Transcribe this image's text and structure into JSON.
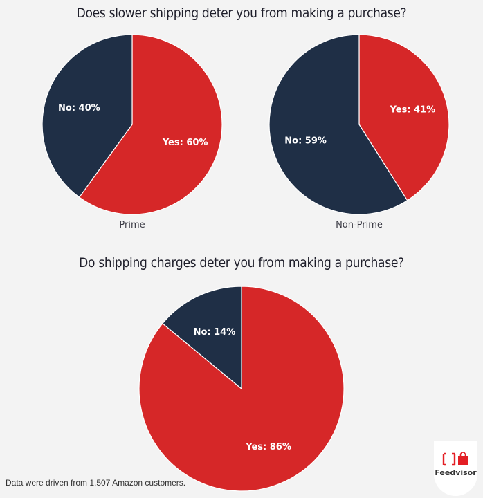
{
  "colors": {
    "yes": "#d62728",
    "no": "#1f2f46",
    "background": "#f3f3f3"
  },
  "section1": {
    "title": "Does slower shipping deter you from making a purchase?"
  },
  "section2": {
    "title": "Do shipping charges deter you from making a purchase?"
  },
  "footnote": "Data were driven from 1,507 Amazon customers.",
  "logo": {
    "brand": "Feedvisor",
    "mark": "[ ]"
  },
  "chart_data": [
    {
      "type": "pie",
      "title": "Does slower shipping deter you from making a purchase?",
      "subtitle": "Prime",
      "slices": [
        {
          "label": "Yes",
          "value": 60,
          "display": "Yes: 60%",
          "color": "#d62728"
        },
        {
          "label": "No",
          "value": 40,
          "display": "No: 40%",
          "color": "#1f2f46"
        }
      ]
    },
    {
      "type": "pie",
      "title": "Does slower shipping deter you from making a purchase?",
      "subtitle": "Non-Prime",
      "slices": [
        {
          "label": "Yes",
          "value": 41,
          "display": "Yes: 41%",
          "color": "#d62728"
        },
        {
          "label": "No",
          "value": 59,
          "display": "No: 59%",
          "color": "#1f2f46"
        }
      ]
    },
    {
      "type": "pie",
      "title": "Do shipping charges deter you from making a purchase?",
      "subtitle": "",
      "slices": [
        {
          "label": "Yes",
          "value": 86,
          "display": "Yes: 86%",
          "color": "#d62728"
        },
        {
          "label": "No",
          "value": 14,
          "display": "No: 14%",
          "color": "#1f2f46"
        }
      ]
    }
  ]
}
